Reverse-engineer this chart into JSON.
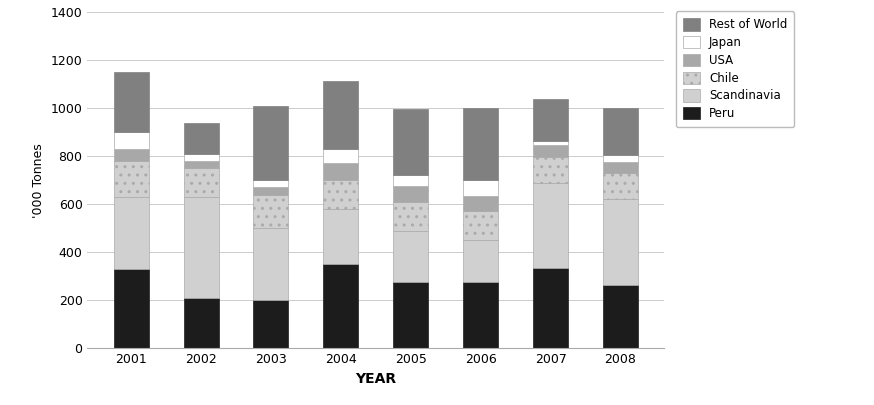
{
  "years": [
    2001,
    2002,
    2003,
    2004,
    2005,
    2006,
    2007,
    2008
  ],
  "series": {
    "Peru": [
      330,
      210,
      200,
      350,
      275,
      275,
      335,
      265
    ],
    "Scandinavia": [
      300,
      420,
      300,
      230,
      215,
      175,
      355,
      355
    ],
    "Chile": [
      150,
      120,
      140,
      120,
      120,
      120,
      105,
      110
    ],
    "USA": [
      50,
      30,
      30,
      70,
      65,
      65,
      50,
      45
    ],
    "Japan": [
      70,
      30,
      30,
      60,
      45,
      65,
      20,
      30
    ],
    "Rest of World": [
      250,
      130,
      310,
      285,
      275,
      300,
      175,
      195
    ]
  },
  "layer_order": [
    "Peru",
    "Scandinavia",
    "Chile",
    "USA",
    "Japan",
    "Rest of World"
  ],
  "legend_order": [
    "Rest of World",
    "Japan",
    "USA",
    "Chile",
    "Scandinavia",
    "Peru"
  ],
  "bar_colors": {
    "Peru": "#1c1c1c",
    "Scandinavia": "#d0d0d0",
    "Chile": "#d0d0d0",
    "USA": "#a8a8a8",
    "Japan": "#ffffff",
    "Rest of World": "#808080"
  },
  "bar_hatches": {
    "Peru": null,
    "Scandinavia": null,
    "Chile": "..",
    "USA": "..",
    "Japan": null,
    "Rest of World": null
  },
  "bar_edgecolors": {
    "Peru": "#1c1c1c",
    "Scandinavia": "#aaaaaa",
    "Chile": "#aaaaaa",
    "USA": "#aaaaaa",
    "Japan": "#aaaaaa",
    "Rest of World": "#808080"
  },
  "ylabel": "'000 Tonnes",
  "xlabel": "YEAR",
  "ylim": [
    0,
    1400
  ],
  "yticks": [
    0,
    200,
    400,
    600,
    800,
    1000,
    1200,
    1400
  ],
  "bar_width": 0.5
}
